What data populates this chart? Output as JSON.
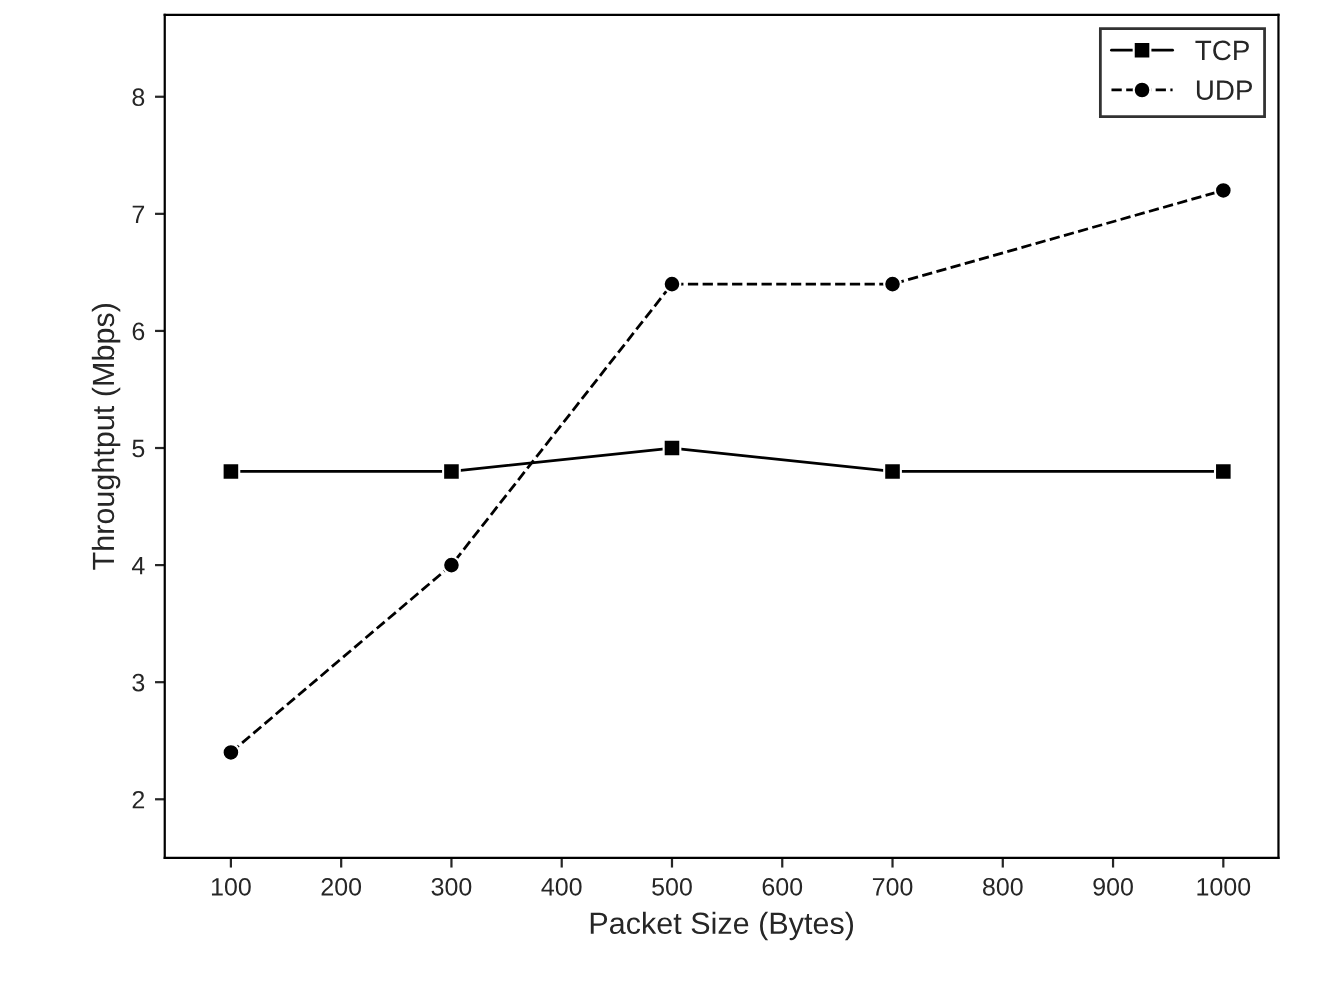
{
  "chart_data": {
    "type": "line",
    "xlabel": "Packet Size (Bytes)",
    "ylabel": "Throughtput (Mbps)",
    "x": [
      100,
      300,
      500,
      700,
      1000
    ],
    "series": [
      {
        "name": "TCP",
        "color": "#000000",
        "values": [
          4.8,
          4.8,
          5.0,
          4.8,
          4.8
        ],
        "marker": "square",
        "line_style": "solid"
      },
      {
        "name": "UDP",
        "color": "#000000",
        "values": [
          2.4,
          4.0,
          6.4,
          6.4,
          7.2
        ],
        "marker": "circle",
        "line_style": "dashed"
      }
    ],
    "xlim": [
      40,
      1050
    ],
    "xticks": [
      100,
      200,
      300,
      400,
      500,
      600,
      700,
      800,
      900,
      1000
    ],
    "ylim": [
      1.5,
      8.7
    ],
    "yticks": [
      2,
      3,
      4,
      5,
      6,
      7,
      8
    ],
    "grid": false,
    "legend": "top right"
  }
}
